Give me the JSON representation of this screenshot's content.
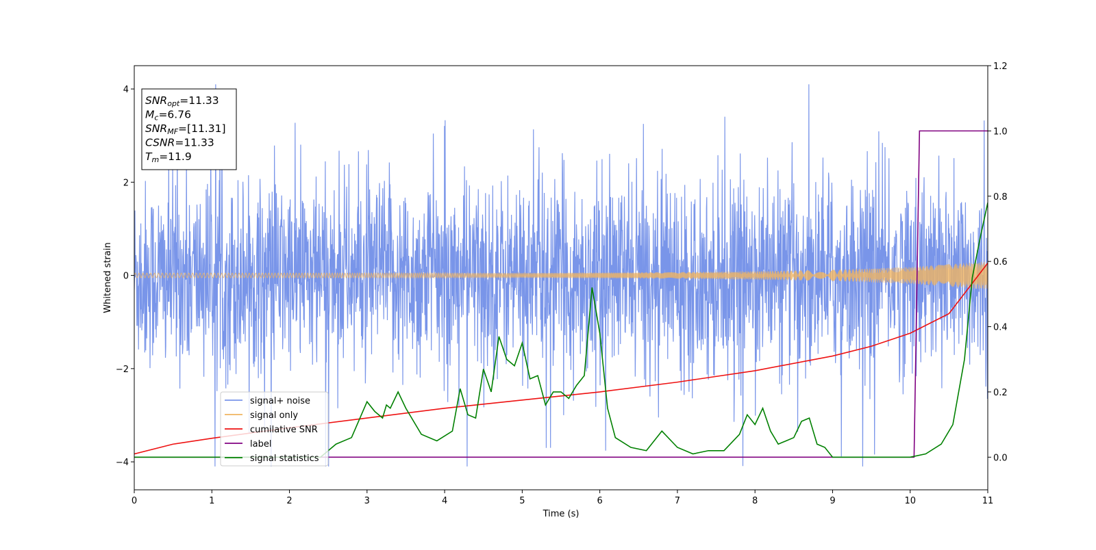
{
  "chart_data": {
    "type": "line",
    "xlabel": "Time (s)",
    "ylabel": "Whitened strain",
    "xlim": [
      0,
      11
    ],
    "ylim_left": [
      -4.6,
      4.5
    ],
    "ylim_right": [
      -0.1,
      1.2
    ],
    "x_ticks": [
      0,
      1,
      2,
      3,
      4,
      5,
      6,
      7,
      8,
      9,
      10,
      11
    ],
    "y_ticks_left": [
      -4,
      -2,
      0,
      2,
      4
    ],
    "y_ticks_right": [
      0.0,
      0.2,
      0.4,
      0.6,
      0.8,
      1.0,
      1.2
    ],
    "grid": false,
    "legend_position": "lower-left",
    "info_box": {
      "lines": [
        {
          "base": "SNR",
          "sub": "opt",
          "rest": "=11.33"
        },
        {
          "base": "M",
          "sub": "c",
          "rest": "=6.76"
        },
        {
          "base": "SNR",
          "sub": "MF",
          "rest": "=[11.31]"
        },
        {
          "base": "CSNR",
          "sub": "",
          "rest": "=11.33"
        },
        {
          "base": "T",
          "sub": "m",
          "rest": "=11.9"
        }
      ]
    },
    "series": [
      {
        "name": "signal+ noise",
        "color": "#7995e9",
        "axis": "left",
        "style": "noise band, approx ±1 sigma core with spikes to about ±4",
        "envelope_center": 0,
        "core_amplitude": 1.4,
        "peak_amplitude": 4.1
      },
      {
        "name": "signal only",
        "color": "#f0b461",
        "axis": "left",
        "style": "chirp oscillation",
        "x": [
          0,
          1,
          2,
          3,
          4,
          5,
          6,
          7,
          8,
          9,
          10,
          11
        ],
        "amplitude": [
          0.05,
          0.05,
          0.05,
          0.05,
          0.05,
          0.05,
          0.06,
          0.07,
          0.09,
          0.12,
          0.18,
          0.3
        ]
      },
      {
        "name": "cumilative SNR",
        "color": "#ee1111",
        "axis": "right",
        "x": [
          0,
          0.5,
          1,
          2,
          3,
          4,
          5,
          6,
          7,
          8,
          9,
          9.5,
          10,
          10.5,
          11
        ],
        "y": [
          0.01,
          0.04,
          0.058,
          0.09,
          0.12,
          0.15,
          0.175,
          0.2,
          0.23,
          0.265,
          0.31,
          0.34,
          0.38,
          0.44,
          0.595
        ]
      },
      {
        "name": "label",
        "color": "#800080",
        "axis": "right",
        "x": [
          0,
          10.05,
          10.12,
          11
        ],
        "y": [
          0,
          0,
          1,
          1
        ]
      },
      {
        "name": "signal statistics",
        "color": "#008000",
        "axis": "right",
        "x": [
          0,
          0.5,
          1,
          1.5,
          2,
          2.4,
          2.6,
          2.8,
          3.0,
          3.1,
          3.2,
          3.25,
          3.3,
          3.4,
          3.5,
          3.7,
          3.9,
          4.1,
          4.2,
          4.3,
          4.4,
          4.5,
          4.6,
          4.7,
          4.8,
          4.9,
          5.0,
          5.1,
          5.2,
          5.3,
          5.4,
          5.5,
          5.6,
          5.7,
          5.8,
          5.9,
          6.0,
          6.1,
          6.2,
          6.4,
          6.6,
          6.8,
          7.0,
          7.2,
          7.4,
          7.6,
          7.8,
          7.9,
          8.0,
          8.1,
          8.2,
          8.3,
          8.4,
          8.5,
          8.6,
          8.7,
          8.8,
          8.9,
          9.0,
          9.2,
          9.5,
          10.0,
          10.2,
          10.4,
          10.55,
          10.7,
          10.8,
          10.9,
          11.0
        ],
        "y": [
          0.0,
          0.0,
          0.0,
          0.0,
          0.0,
          0.0,
          0.04,
          0.06,
          0.17,
          0.14,
          0.12,
          0.16,
          0.15,
          0.2,
          0.15,
          0.07,
          0.05,
          0.08,
          0.21,
          0.13,
          0.12,
          0.27,
          0.2,
          0.37,
          0.3,
          0.28,
          0.35,
          0.24,
          0.25,
          0.16,
          0.2,
          0.2,
          0.18,
          0.22,
          0.25,
          0.52,
          0.38,
          0.15,
          0.06,
          0.03,
          0.02,
          0.08,
          0.03,
          0.01,
          0.02,
          0.02,
          0.07,
          0.13,
          0.1,
          0.15,
          0.08,
          0.04,
          0.05,
          0.06,
          0.11,
          0.12,
          0.04,
          0.03,
          0.0,
          0.0,
          0.0,
          0.0,
          0.01,
          0.04,
          0.1,
          0.3,
          0.55,
          0.67,
          0.78
        ]
      }
    ]
  }
}
